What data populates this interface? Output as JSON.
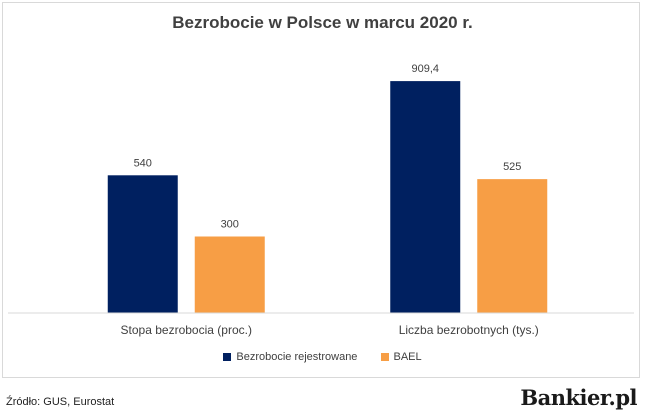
{
  "chart_data": {
    "type": "bar",
    "title": "Bezrobocie w Polsce w marcu 2020 r.",
    "categories": [
      "Stopa bezrobocia (proc.)",
      "Liczba bezrobotnych (tys.)"
    ],
    "series": [
      {
        "name": "Bezrobocie rejestrowane",
        "values": [
          540,
          909.4
        ],
        "labels": [
          "540",
          "909,4"
        ],
        "color": "#002060"
      },
      {
        "name": "BAEL",
        "values": [
          300,
          525
        ],
        "labels": [
          "300",
          "525"
        ],
        "color": "#F79E45"
      }
    ],
    "ylim": [
      0,
      1000
    ],
    "grid": false,
    "legend_position": "bottom"
  },
  "source": "Źródło: GUS, Eurostat",
  "logo": "Bankier.pl"
}
